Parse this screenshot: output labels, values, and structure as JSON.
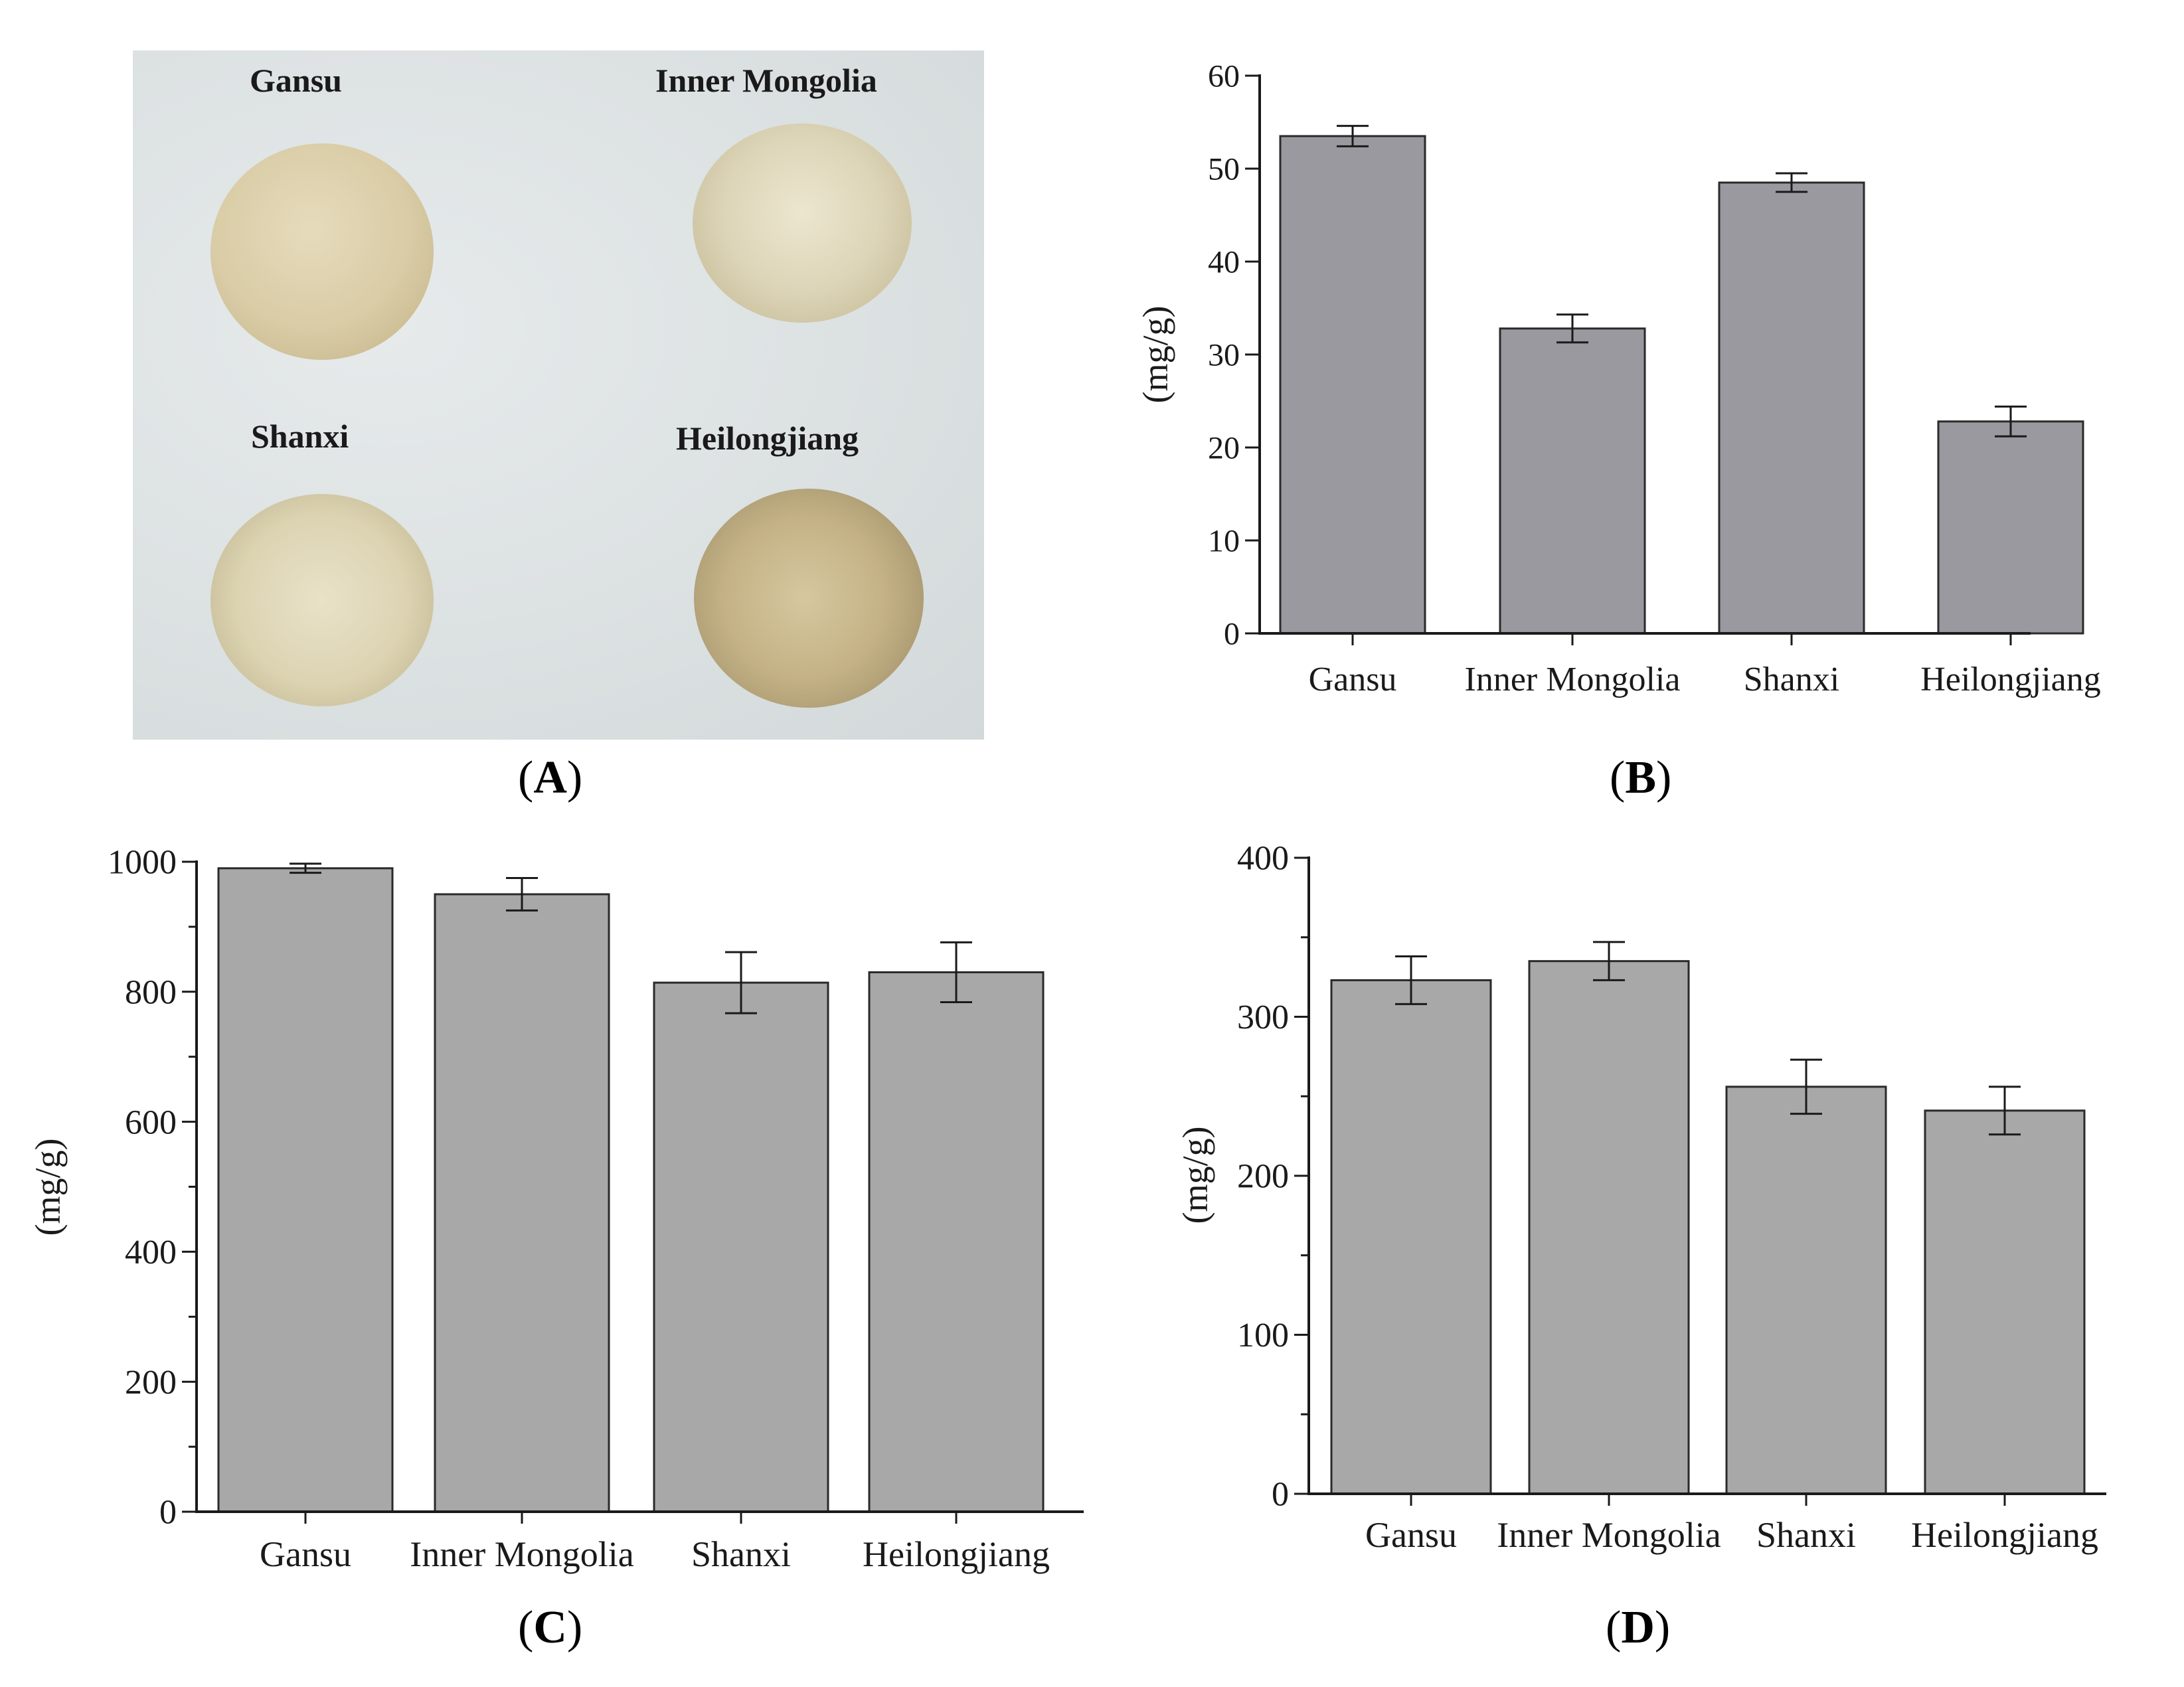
{
  "panels": {
    "a": {
      "caption": "A",
      "samples": [
        {
          "label": "Gansu"
        },
        {
          "label": "Inner Mongolia"
        },
        {
          "label": "Shanxi"
        },
        {
          "label": "Heilongjiang"
        }
      ]
    },
    "b": {
      "caption": "B"
    },
    "c": {
      "caption": "C"
    },
    "d": {
      "caption": "D"
    }
  },
  "colors": {
    "bar_b": "#9a999f",
    "bar_cd": "#a8a8a8",
    "axis": "#1a1a1a",
    "photo_bg": "#dde2e3"
  },
  "chart_data": [
    {
      "id": "b",
      "type": "bar",
      "title": "",
      "xlabel": "",
      "ylabel": "(mg/g)",
      "categories": [
        "Gansu",
        "Inner Mongolia",
        "Shanxi",
        "Heilongjiang"
      ],
      "values": [
        53.5,
        32.8,
        48.5,
        22.8
      ],
      "errors": [
        1.1,
        1.5,
        1.0,
        1.6
      ],
      "ylim": [
        0,
        60
      ],
      "yticks": [
        0,
        10,
        20,
        30,
        40,
        50,
        60
      ],
      "minor_ticks": false,
      "grid": false
    },
    {
      "id": "c",
      "type": "bar",
      "title": "",
      "xlabel": "",
      "ylabel": "(mg/g)",
      "categories": [
        "Gansu",
        "Inner Mongolia",
        "Shanxi",
        "Heilongjiang"
      ],
      "values": [
        990,
        950,
        814,
        830
      ],
      "errors": [
        7,
        25,
        47,
        46
      ],
      "ylim": [
        0,
        1000
      ],
      "yticks": [
        0,
        200,
        400,
        600,
        800,
        1000
      ],
      "minor_ticks": true,
      "grid": false
    },
    {
      "id": "d",
      "type": "bar",
      "title": "",
      "xlabel": "",
      "ylabel": "(mg/g)",
      "categories": [
        "Gansu",
        "Inner Mongolia",
        "Shanxi",
        "Heilongjiang"
      ],
      "values": [
        323,
        335,
        256,
        241
      ],
      "errors": [
        15,
        12,
        17,
        15
      ],
      "ylim": [
        0,
        400
      ],
      "yticks": [
        0,
        100,
        200,
        300,
        400
      ],
      "minor_ticks": true,
      "grid": false
    }
  ]
}
